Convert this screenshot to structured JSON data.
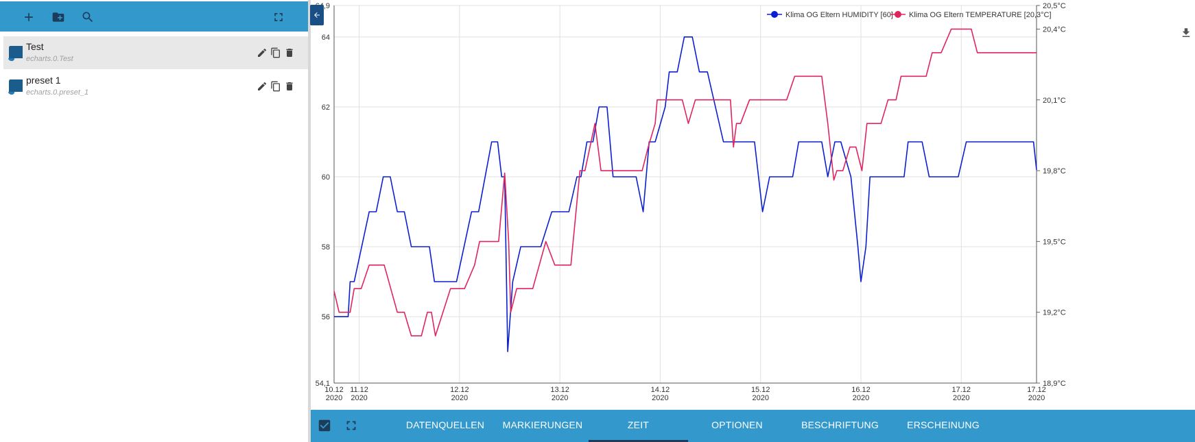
{
  "sidebar": {
    "toolbar": {
      "icons": [
        "add-icon",
        "folder-add-icon",
        "search-icon",
        "fullscreen-icon"
      ]
    },
    "items": [
      {
        "title": "Test",
        "subtitle": "echarts.0.Test",
        "selected": true
      },
      {
        "title": "preset 1",
        "subtitle": "echarts.0.preset_1",
        "selected": false
      }
    ]
  },
  "colors": {
    "accent": "#3399cc",
    "humidity": "#0a1fd0",
    "temperature": "#e0245e",
    "dark": "#1d3c5a"
  },
  "tabs": [
    "DATENQUELLEN",
    "MARKIERUNGEN",
    "ZEIT",
    "OPTIONEN",
    "BESCHRIFTUNG",
    "ERSCHEINUNG"
  ],
  "active_tab": "ZEIT",
  "chart_data": {
    "type": "line",
    "legend_position": "top-right",
    "grid": true,
    "x_labels": [
      [
        "10.12",
        "2020"
      ],
      [
        "11.12",
        "2020"
      ],
      [
        "12.12",
        "2020"
      ],
      [
        "13.12",
        "2020"
      ],
      [
        "14.12",
        "2020"
      ],
      [
        "15.12",
        "2020"
      ],
      [
        "16.12",
        "2020"
      ],
      [
        "17.12",
        "2020"
      ],
      [
        "17.12",
        "2020"
      ]
    ],
    "x_ticks": [
      0,
      0.25,
      1.25,
      2.25,
      3.25,
      4.25,
      5.25,
      6.25,
      7.0
    ],
    "x_range": [
      0,
      7.0
    ],
    "y_left": {
      "min": 54.1,
      "max": 64.9,
      "ticks": [
        54.1,
        56,
        58,
        60,
        62,
        64,
        64.9
      ],
      "tick_labels": [
        "54,1",
        "56",
        "58",
        "60",
        "62",
        "64",
        "64,9"
      ]
    },
    "y_right": {
      "min": 18.9,
      "max": 20.5,
      "ticks": [
        18.9,
        19.2,
        19.5,
        19.8,
        20.1,
        20.4,
        20.5
      ],
      "tick_labels": [
        "18,9°C",
        "19,2°C",
        "19,5°C",
        "19,8°C",
        "20,1°C",
        "20,4°C",
        "20,5°C"
      ]
    },
    "series": [
      {
        "name": "Klima OG Eltern HUMIDITY [60]",
        "axis": "left",
        "points": [
          [
            0,
            56
          ],
          [
            0.14,
            56
          ],
          [
            0.16,
            57
          ],
          [
            0.2,
            57
          ],
          [
            0.35,
            59
          ],
          [
            0.42,
            59
          ],
          [
            0.49,
            60
          ],
          [
            0.56,
            60
          ],
          [
            0.63,
            59
          ],
          [
            0.7,
            59
          ],
          [
            0.77,
            58
          ],
          [
            0.95,
            58
          ],
          [
            1.0,
            57
          ],
          [
            1.22,
            57
          ],
          [
            1.37,
            59
          ],
          [
            1.44,
            59
          ],
          [
            1.57,
            61
          ],
          [
            1.63,
            61
          ],
          [
            1.67,
            60
          ],
          [
            1.7,
            60
          ],
          [
            1.73,
            55
          ],
          [
            1.78,
            57
          ],
          [
            1.86,
            58
          ],
          [
            2.06,
            58
          ],
          [
            2.17,
            59
          ],
          [
            2.34,
            59
          ],
          [
            2.42,
            60
          ],
          [
            2.46,
            60
          ],
          [
            2.52,
            61
          ],
          [
            2.58,
            61
          ],
          [
            2.64,
            62
          ],
          [
            2.72,
            62
          ],
          [
            2.78,
            60
          ],
          [
            3.01,
            60
          ],
          [
            3.08,
            59
          ],
          [
            3.14,
            61
          ],
          [
            3.2,
            61
          ],
          [
            3.3,
            62
          ],
          [
            3.34,
            63
          ],
          [
            3.42,
            63
          ],
          [
            3.49,
            64
          ],
          [
            3.57,
            64
          ],
          [
            3.64,
            63
          ],
          [
            3.72,
            63
          ],
          [
            3.88,
            61
          ],
          [
            4.19,
            61
          ],
          [
            4.27,
            59
          ],
          [
            4.34,
            60
          ],
          [
            4.57,
            60
          ],
          [
            4.63,
            61
          ],
          [
            4.86,
            61
          ],
          [
            4.92,
            60
          ],
          [
            4.99,
            61
          ],
          [
            5.05,
            61
          ],
          [
            5.15,
            60
          ],
          [
            5.22,
            58
          ],
          [
            5.25,
            57
          ],
          [
            5.3,
            58
          ],
          [
            5.34,
            60
          ],
          [
            5.68,
            60
          ],
          [
            5.72,
            61
          ],
          [
            5.86,
            61
          ],
          [
            5.93,
            60
          ],
          [
            6.22,
            60
          ],
          [
            6.3,
            61
          ],
          [
            6.97,
            61
          ],
          [
            7.0,
            60.2
          ]
        ]
      },
      {
        "name": "Klima OG Eltern TEMPERATURE [20,3°C]",
        "axis": "right",
        "points": [
          [
            0,
            19.29
          ],
          [
            0.05,
            19.2
          ],
          [
            0.16,
            19.2
          ],
          [
            0.2,
            19.3
          ],
          [
            0.27,
            19.3
          ],
          [
            0.35,
            19.4
          ],
          [
            0.5,
            19.4
          ],
          [
            0.63,
            19.2
          ],
          [
            0.7,
            19.2
          ],
          [
            0.77,
            19.1
          ],
          [
            0.87,
            19.1
          ],
          [
            0.93,
            19.2
          ],
          [
            0.97,
            19.2
          ],
          [
            1.01,
            19.1
          ],
          [
            1.16,
            19.3
          ],
          [
            1.3,
            19.3
          ],
          [
            1.4,
            19.4
          ],
          [
            1.45,
            19.5
          ],
          [
            1.64,
            19.5
          ],
          [
            1.7,
            19.79
          ],
          [
            1.74,
            19.5
          ],
          [
            1.76,
            19.2
          ],
          [
            1.82,
            19.3
          ],
          [
            1.98,
            19.3
          ],
          [
            2.11,
            19.5
          ],
          [
            2.2,
            19.4
          ],
          [
            2.36,
            19.4
          ],
          [
            2.45,
            19.8
          ],
          [
            2.5,
            19.8
          ],
          [
            2.6,
            20.0
          ],
          [
            2.66,
            19.8
          ],
          [
            2.72,
            19.8
          ],
          [
            3.07,
            19.8
          ],
          [
            3.13,
            19.9
          ],
          [
            3.2,
            20.0
          ],
          [
            3.22,
            20.1
          ],
          [
            3.47,
            20.1
          ],
          [
            3.53,
            20.0
          ],
          [
            3.6,
            20.1
          ],
          [
            3.95,
            20.1
          ],
          [
            3.98,
            19.9
          ],
          [
            4.01,
            20.0
          ],
          [
            4.05,
            20.0
          ],
          [
            4.14,
            20.1
          ],
          [
            4.51,
            20.1
          ],
          [
            4.59,
            20.2
          ],
          [
            4.86,
            20.2
          ],
          [
            4.92,
            20.0
          ],
          [
            4.98,
            19.76
          ],
          [
            5.01,
            19.8
          ],
          [
            5.07,
            19.8
          ],
          [
            5.14,
            19.9
          ],
          [
            5.2,
            19.9
          ],
          [
            5.26,
            19.8
          ],
          [
            5.31,
            20.0
          ],
          [
            5.45,
            20.0
          ],
          [
            5.52,
            20.1
          ],
          [
            5.6,
            20.1
          ],
          [
            5.65,
            20.2
          ],
          [
            5.9,
            20.2
          ],
          [
            5.96,
            20.3
          ],
          [
            6.05,
            20.3
          ],
          [
            6.15,
            20.4
          ],
          [
            6.35,
            20.4
          ],
          [
            6.41,
            20.3
          ],
          [
            7.0,
            20.3
          ]
        ]
      }
    ]
  }
}
